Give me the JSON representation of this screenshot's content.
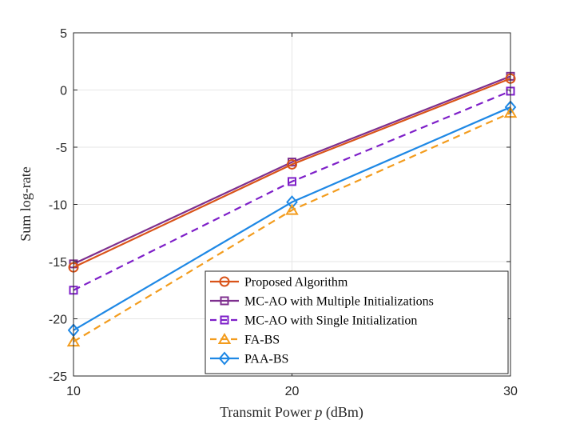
{
  "chart_data": {
    "type": "line",
    "title": "",
    "xlabel_prefix": "Transmit Power ",
    "xlabel_var": "p",
    "xlabel_suffix": " (dBm)",
    "ylabel": "Sum log-rate",
    "x": [
      10,
      20,
      30
    ],
    "xlim": [
      10,
      30
    ],
    "ylim": [
      -25,
      5
    ],
    "xticks": [
      10,
      20,
      30
    ],
    "yticks": [
      5,
      0,
      -5,
      -10,
      -15,
      -20,
      -25
    ],
    "grid": true,
    "legend_position": "bottom-right",
    "series": [
      {
        "name": "Proposed Algorithm",
        "values": [
          -15.5,
          -6.5,
          1.0
        ],
        "color": "#d95319",
        "dash": "solid",
        "marker": "circle"
      },
      {
        "name": "MC-AO with Multiple Initializations",
        "values": [
          -15.2,
          -6.3,
          1.2
        ],
        "color": "#7e2f8e",
        "dash": "solid",
        "marker": "square"
      },
      {
        "name": "MC-AO with Single Initialization",
        "values": [
          -17.5,
          -8.0,
          -0.1
        ],
        "color": "#7e1fc8",
        "dash": "dashed",
        "marker": "square"
      },
      {
        "name": "FA-BS",
        "values": [
          -22.0,
          -10.5,
          -2.0
        ],
        "color": "#f39c1d",
        "dash": "dashed",
        "marker": "triangle"
      },
      {
        "name": "PAA-BS",
        "values": [
          -21.0,
          -9.8,
          -1.5
        ],
        "color": "#1e88e5",
        "dash": "solid",
        "marker": "diamond"
      }
    ]
  }
}
